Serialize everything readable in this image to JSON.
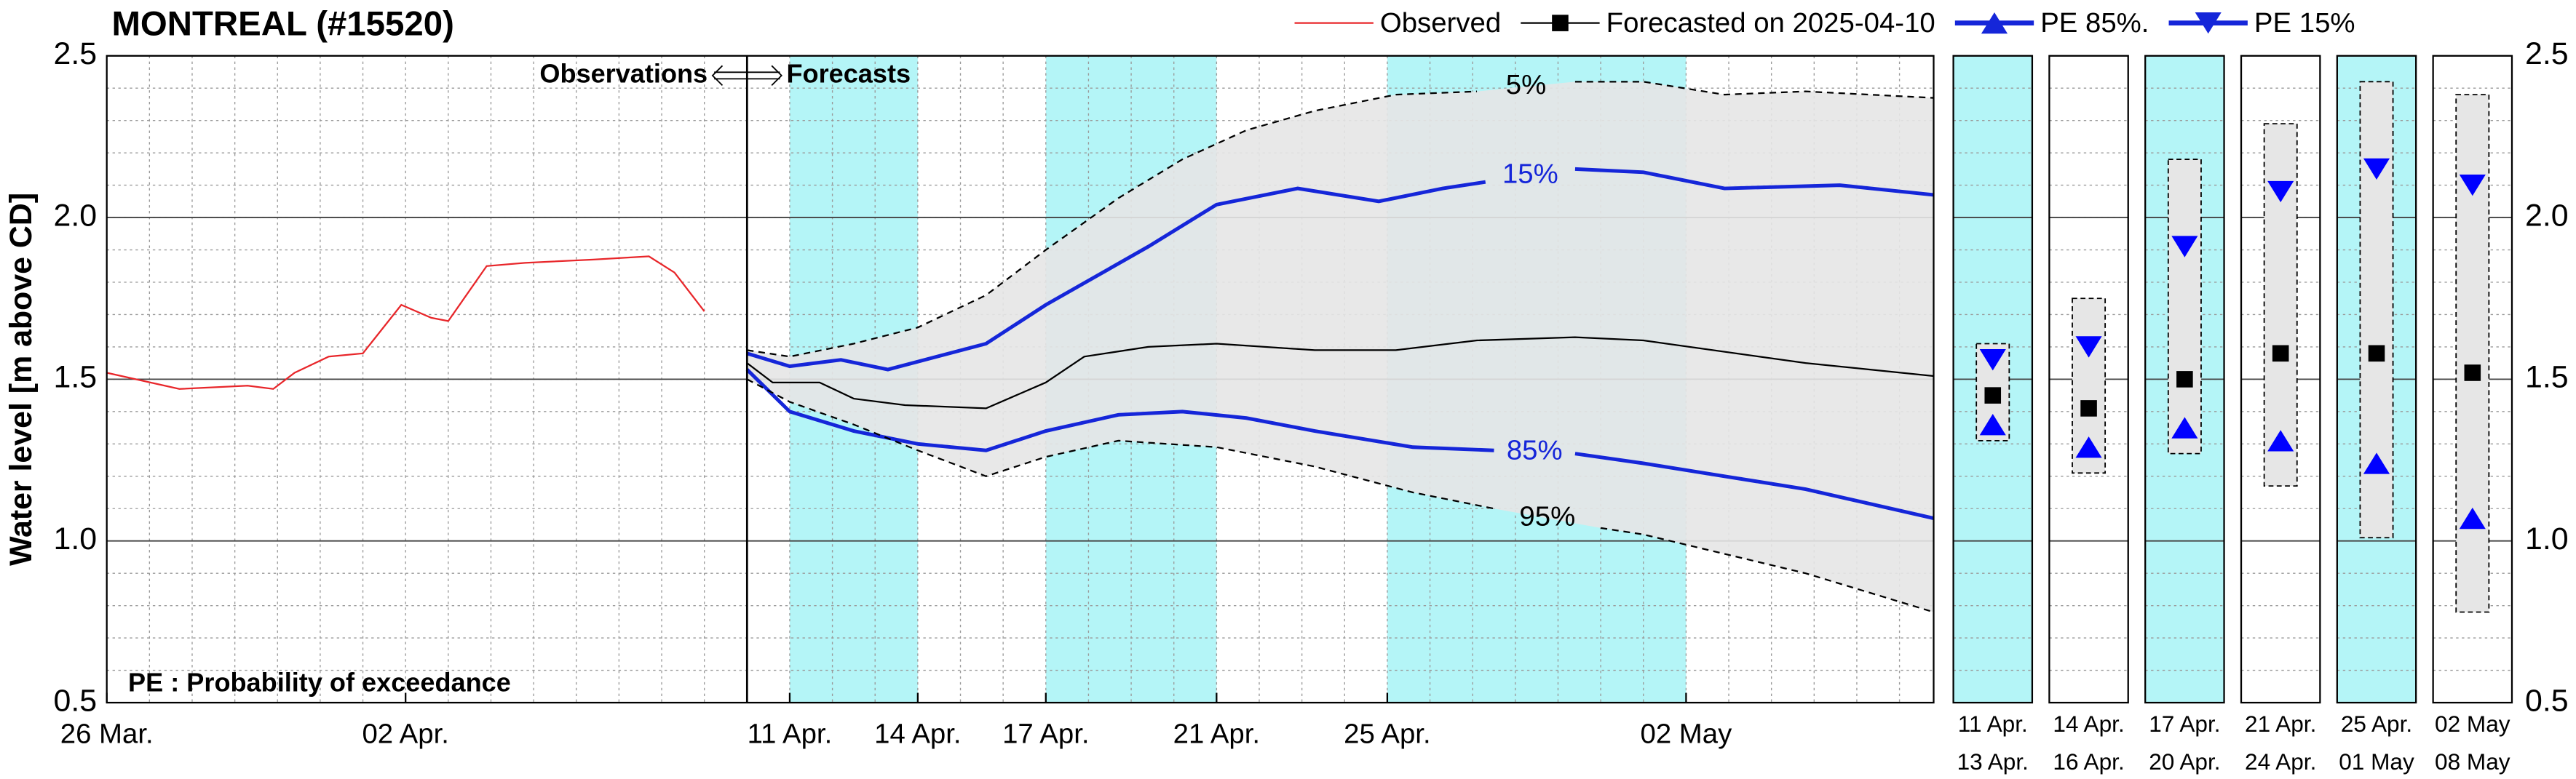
{
  "chart_data": [
    {
      "type": "line",
      "title": "MONTREAL (#15520)",
      "y_label": "Water level [m above CD]",
      "annotations": [
        "Observations",
        "Forecasts",
        "PE : Probability of exceedance"
      ],
      "divider_x": 15,
      "xlim": [
        0,
        42.8
      ],
      "xticks": [
        {
          "value": 0,
          "label": "26 Mar."
        },
        {
          "value": 7,
          "label": "02 Apr."
        },
        {
          "value": 16,
          "label": "11 Apr."
        },
        {
          "value": 19,
          "label": "14 Apr."
        },
        {
          "value": 22,
          "label": "17 Apr."
        },
        {
          "value": 26,
          "label": "21 Apr."
        },
        {
          "value": 30,
          "label": "25 Apr."
        },
        {
          "value": 37,
          "label": "02 May"
        }
      ],
      "ylim": [
        0.5,
        2.5
      ],
      "yticks": [
        0.5,
        {
          "value": 1,
          "label": "1.0"
        },
        1.5,
        {
          "value": 2,
          "label": "2.0"
        },
        2.5
      ],
      "grid": true,
      "shaded_periods": [
        [
          16,
          19
        ],
        [
          22,
          26
        ],
        [
          30,
          37
        ]
      ],
      "shade_color": "#b4f5f7",
      "band_fill": "#e6e6e6",
      "legend": "top",
      "series": [
        {
          "name": "Observed",
          "color": "#e8262a",
          "width": 1,
          "x": [
            0,
            1.7,
            3.3,
            3.9,
            4.4,
            5.2,
            6,
            6.9,
            7.6,
            8,
            8.9,
            9.8,
            11.4,
            12.7,
            13.3,
            14
          ],
          "values": [
            1.52,
            1.47,
            1.48,
            1.47,
            1.52,
            1.57,
            1.58,
            1.73,
            1.69,
            1.68,
            1.85,
            1.86,
            1.87,
            1.88,
            1.83,
            1.71
          ]
        },
        {
          "name": "Forecasted on 2025-04-10",
          "color": "#000000",
          "width": 1,
          "marker": "square",
          "x": [
            15,
            15.6,
            16.7,
            17.5,
            18.7,
            20.6,
            22,
            22.9,
            24.4,
            26,
            28.3,
            30.2,
            32.1,
            34.4,
            36,
            39.8,
            42.8
          ],
          "values": [
            1.55,
            1.49,
            1.49,
            1.44,
            1.42,
            1.41,
            1.49,
            1.57,
            1.6,
            1.61,
            1.59,
            1.59,
            1.62,
            1.63,
            1.62,
            1.55,
            1.51
          ]
        },
        {
          "name": "PE 85%.",
          "line_label": "85%",
          "color": "#1526d9",
          "width": 2.2,
          "marker": "triangle-up",
          "x": [
            15,
            16,
            17.5,
            19,
            20.6,
            22,
            23.7,
            25.2,
            26.7,
            28.3,
            30.6,
            32.5,
            null,
            34.4,
            36,
            37.9,
            39.8,
            42.8
          ],
          "values": [
            1.53,
            1.4,
            1.34,
            1.3,
            1.28,
            1.34,
            1.39,
            1.4,
            1.38,
            1.34,
            1.29,
            1.28,
            null,
            1.27,
            1.24,
            1.2,
            1.16,
            1.07
          ]
        },
        {
          "name": "PE 15%",
          "line_label": "15%",
          "color": "#1526d9",
          "width": 2.2,
          "marker": "triangle-down",
          "x": [
            15,
            16,
            17.2,
            18.3,
            20.6,
            22,
            24.4,
            26,
            27.9,
            29.8,
            31.3,
            32.3,
            null,
            34.4,
            36,
            37.9,
            40.6,
            42.8
          ],
          "values": [
            1.58,
            1.54,
            1.56,
            1.53,
            1.61,
            1.73,
            1.91,
            2.04,
            2.09,
            2.05,
            2.09,
            2.11,
            null,
            2.15,
            2.14,
            2.09,
            2.1,
            2.07
          ]
        },
        {
          "line_label": "5%",
          "color": "#000000",
          "width": 1,
          "dashed": true,
          "band": "upper",
          "x": [
            15,
            16,
            17.5,
            19,
            20.6,
            22,
            23.7,
            25.2,
            26.7,
            28.3,
            30.2,
            32.1,
            null,
            34.4,
            36,
            37.9,
            39.8,
            42.8
          ],
          "values": [
            1.59,
            1.57,
            1.61,
            1.66,
            1.76,
            1.9,
            2.06,
            2.18,
            2.27,
            2.33,
            2.38,
            2.39,
            null,
            2.42,
            2.42,
            2.38,
            2.39,
            2.37
          ]
        },
        {
          "line_label": "95%",
          "color": "#000000",
          "width": 1,
          "dashed": true,
          "band": "lower",
          "x": [
            15,
            16,
            17.5,
            19,
            20.6,
            22,
            23.7,
            26,
            28.3,
            30.6,
            32.5,
            null,
            35,
            36,
            37.9,
            39.8,
            42.8
          ],
          "values": [
            1.5,
            1.43,
            1.36,
            1.28,
            1.2,
            1.26,
            1.31,
            1.29,
            1.23,
            1.15,
            1.1,
            null,
            1.04,
            1.02,
            0.96,
            0.9,
            0.78
          ]
        }
      ]
    },
    {
      "type": "range",
      "categories": [
        [
          "11 Apr.",
          "13 Apr."
        ],
        [
          "14 Apr.",
          "16 Apr."
        ],
        [
          "17 Apr.",
          "20 Apr."
        ],
        [
          "21 Apr.",
          "24 Apr."
        ],
        [
          "25 Apr.",
          "01 May"
        ],
        [
          "02 May",
          "08 May"
        ]
      ],
      "panel_colors": [
        "#b4f5f7",
        "#ffffff",
        "#b4f5f7",
        "#ffffff",
        "#b4f5f7",
        "#ffffff"
      ],
      "ylim": [
        0.5,
        2.5
      ],
      "yticks": [
        0.5,
        {
          "value": 1,
          "label": "1.0"
        },
        1.5,
        {
          "value": 2,
          "label": "2.0"
        },
        2.5
      ],
      "high": [
        1.61,
        1.75,
        2.18,
        2.29,
        2.42,
        2.38
      ],
      "low": [
        1.31,
        1.21,
        1.27,
        1.17,
        1.01,
        0.78
      ],
      "box_fill": "#e6e6e6",
      "series": [
        {
          "marker": "square",
          "color": "#000000",
          "values": [
            1.45,
            1.41,
            1.5,
            1.58,
            1.58,
            1.52
          ]
        },
        {
          "marker": "triangle-down",
          "color": "#0000ff",
          "values": [
            1.56,
            1.6,
            1.91,
            2.08,
            2.15,
            2.1
          ]
        },
        {
          "marker": "triangle-up",
          "color": "#0000ff",
          "values": [
            1.36,
            1.29,
            1.35,
            1.31,
            1.24,
            1.07
          ]
        }
      ]
    }
  ]
}
